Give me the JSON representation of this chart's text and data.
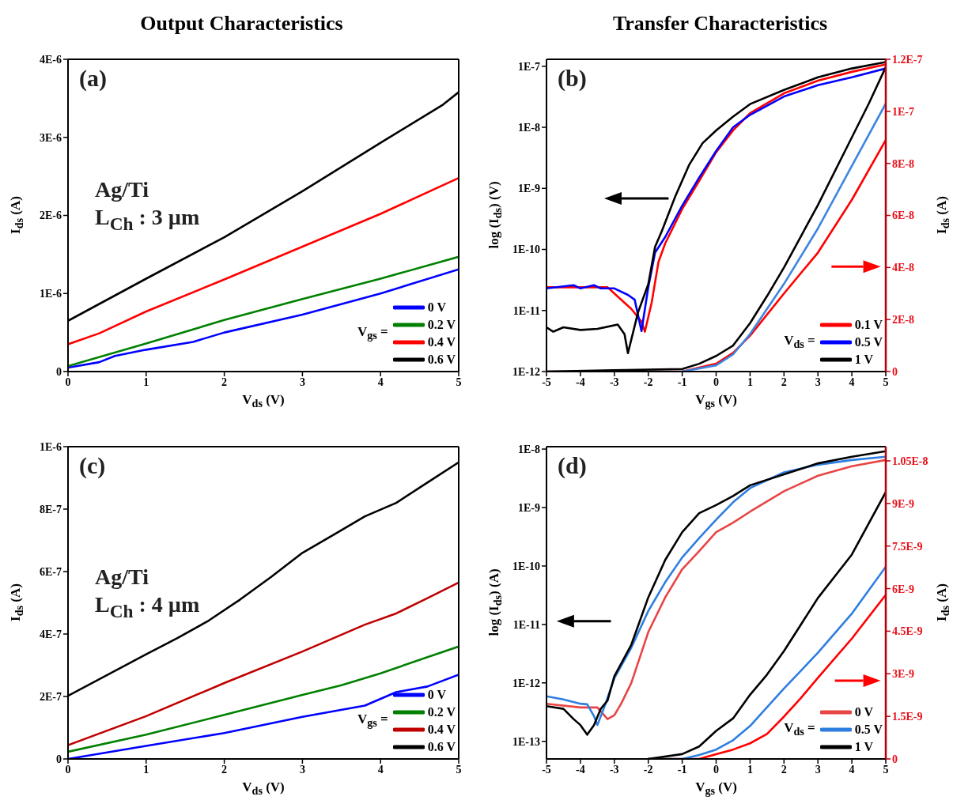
{
  "chart_data": [
    {
      "type": "line",
      "title": "Output Characteristics",
      "xlabel": "V$_{ds}$ (V)",
      "ylabel": "I$_{ds}$ (A)",
      "legend_title": "V$_{gs}$ =",
      "annotations": [
        "(a)",
        "Ag/Ti",
        "L$_{Ch}$ : 3 µm"
      ],
      "xlim": [
        0,
        5
      ],
      "xticks": [
        0,
        1,
        2,
        3,
        4,
        5
      ],
      "ylim": [
        0,
        4e-06
      ],
      "yticks": [
        0,
        {
          "value": 1e-06,
          "label": "1E-6"
        },
        {
          "value": 2e-06,
          "label": "2E-6"
        },
        {
          "value": 3e-06,
          "label": "3E-6"
        },
        {
          "value": 4e-06,
          "label": "4E-6"
        }
      ],
      "legend": "bottom right",
      "line_style": "solid",
      "series": [
        {
          "name": "0 V",
          "color": "#0000ff",
          "x": [
            0,
            0.4,
            0.6,
            1,
            1.6,
            2,
            3,
            4,
            5
          ],
          "values": [
            5e-08,
            1.2e-07,
            2e-07,
            2.8e-07,
            3.8e-07,
            5e-07,
            7.3e-07,
            1e-06,
            1.31e-06
          ]
        },
        {
          "name": "0.2 V",
          "color": "#008000",
          "x": [
            0,
            1,
            2,
            3,
            4,
            5
          ],
          "values": [
            7e-08,
            3.6e-07,
            6.6e-07,
            9.3e-07,
            1.19e-06,
            1.47e-06
          ]
        },
        {
          "name": "0.4 V",
          "color": "#ff0000",
          "x": [
            0,
            0.4,
            1,
            2,
            3,
            4,
            5
          ],
          "values": [
            3.5e-07,
            4.9e-07,
            7.7e-07,
            1.18e-06,
            1.6e-06,
            2.02e-06,
            2.48e-06
          ]
        },
        {
          "name": "0.6 V",
          "color": "#000000",
          "x": [
            0,
            1,
            2,
            3,
            4,
            4.8,
            5
          ],
          "values": [
            6.5e-07,
            1.19e-06,
            1.72e-06,
            2.31e-06,
            2.93e-06,
            3.42e-06,
            3.58e-06
          ]
        }
      ]
    },
    {
      "type": "line",
      "title": "Transfer Characteristics",
      "xlabel": "V$_{gs}$ (V)",
      "ylabel": "log (I$_{ds}$) (V)",
      "y2label": "I$_{ds}$ (A)",
      "legend_title": "V$_{ds}$ =",
      "annotations": [
        "(b)"
      ],
      "log": "y",
      "xlim": [
        -5,
        5
      ],
      "xticks": [
        -5,
        -4,
        -3,
        -2,
        -1,
        0,
        1,
        2,
        3,
        4,
        5
      ],
      "ylim": [
        1e-12,
        1.3e-07
      ],
      "yticks": [
        {
          "value": 1e-12,
          "label": "1E-12"
        },
        {
          "value": 1e-11,
          "label": "1E-11"
        },
        {
          "value": 1e-10,
          "label": "1E-10"
        },
        {
          "value": 1e-09,
          "label": "1E-9"
        },
        {
          "value": 1e-08,
          "label": "1E-8"
        },
        {
          "value": 1e-07,
          "label": "1E-7"
        }
      ],
      "y2lim": [
        0,
        1.2e-07
      ],
      "y2ticks": [
        0,
        {
          "value": 2e-08,
          "label": "2E-8"
        },
        {
          "value": 4e-08,
          "label": "4E-8"
        },
        {
          "value": 6e-08,
          "label": "6E-8"
        },
        {
          "value": 8e-08,
          "label": "8E-8"
        },
        {
          "value": 1e-07,
          "label": "1E-7"
        },
        {
          "value": 1.2e-07,
          "label": "1.2E-7"
        }
      ],
      "legend": "bottom right",
      "line_style": "solid",
      "series": [
        {
          "name": "0.1 V",
          "color": "#ff0000",
          "x": [
            -5,
            -3.2,
            -3,
            -2.5,
            -2.2,
            -2.1,
            -1.9,
            -1.7,
            -1.5,
            -1,
            -0.5,
            0,
            0.5,
            1,
            2,
            3,
            4,
            5
          ],
          "values": [
            2.4e-11,
            2.4e-11,
            1.9e-11,
            1.06e-11,
            6.6e-12,
            4.5e-12,
            1.35e-11,
            6.2e-11,
            1.26e-10,
            4.6e-10,
            1.33e-09,
            3.9e-09,
            8.9e-09,
            1.7e-08,
            3.6e-08,
            5.8e-08,
            8.1e-08,
            1.07e-07
          ]
        },
        {
          "name": "0.5 V",
          "color": "#0000ff",
          "x": [
            -5,
            -4.2,
            -4,
            -3.6,
            -3.4,
            -3,
            -2.6,
            -2.4,
            -2.2,
            -2,
            -1.8,
            -1.5,
            -1,
            -0.5,
            0,
            0.5,
            1,
            2,
            3,
            4,
            5
          ],
          "values": [
            2.3e-11,
            2.6e-11,
            2.3e-11,
            2.6e-11,
            2.3e-11,
            2.3e-11,
            1.8e-11,
            1.5e-11,
            4.6e-12,
            2.4e-11,
            8.9e-11,
            1.6e-10,
            5.2e-10,
            1.5e-09,
            4.1e-09,
            1e-08,
            1.6e-08,
            3.2e-08,
            4.9e-08,
            6.6e-08,
            9.2e-08
          ]
        },
        {
          "name": "1 V",
          "color": "#000000",
          "x": [
            -5,
            -4.8,
            -4.5,
            -4,
            -3.5,
            -2.9,
            -2.7,
            -2.6,
            -2.3,
            -2,
            -1.8,
            -1.6,
            -1.2,
            -0.8,
            -0.4,
            0,
            0.5,
            1,
            2,
            3,
            4,
            5
          ],
          "values": [
            5.3e-12,
            4.5e-12,
            5.3e-12,
            4.8e-12,
            5e-12,
            5.9e-12,
            4.1e-12,
            2e-12,
            9.4e-12,
            2.7e-11,
            1.1e-10,
            2e-10,
            7.5e-10,
            2.4e-09,
            5.5e-09,
            8.9e-09,
            1.5e-08,
            2.4e-08,
            4.1e-08,
            6.6e-08,
            9.2e-08,
            1.17e-07
          ]
        },
        {
          "axis": "y2",
          "color": "#ff0000",
          "x": [
            -5,
            -1,
            0,
            0.5,
            1,
            2,
            3,
            4,
            5
          ],
          "values": [
            0,
            0,
            3e-09,
            7.2e-09,
            1.38e-08,
            3e-08,
            4.57e-08,
            6.6e-08,
            8.9e-08
          ]
        },
        {
          "axis": "y2",
          "color": "#3d85e0",
          "x": [
            -5,
            -1,
            0,
            0.5,
            1,
            2,
            3,
            4,
            5
          ],
          "values": [
            0,
            0,
            2.4e-09,
            6.6e-09,
            1.44e-08,
            3.37e-08,
            5.5e-08,
            7.9e-08,
            1.03e-07
          ]
        },
        {
          "axis": "y2",
          "color": "#000000",
          "x": [
            -5,
            -1,
            -0.5,
            0,
            0.5,
            1,
            1.5,
            2,
            3,
            4,
            4.5,
            5
          ],
          "values": [
            0,
            1e-09,
            3e-09,
            6e-09,
            1e-08,
            1.86e-08,
            2.9e-08,
            4e-08,
            6.4e-08,
            9e-08,
            1.03e-07,
            1.17e-07
          ]
        }
      ]
    },
    {
      "type": "line",
      "xlabel": "V$_{ds}$ (V)",
      "ylabel": "I$_{ds}$ (A)",
      "legend_title": "V$_{gs}$ =",
      "annotations": [
        "(c)",
        "Ag/Ti",
        "L$_{Ch}$ : 4 µm"
      ],
      "xlim": [
        0,
        5
      ],
      "xticks": [
        0,
        1,
        2,
        3,
        4,
        5
      ],
      "ylim": [
        0,
        1e-06
      ],
      "yticks": [
        0,
        {
          "value": 2e-07,
          "label": "2E-7"
        },
        {
          "value": 4e-07,
          "label": "4E-7"
        },
        {
          "value": 6e-07,
          "label": "6E-7"
        },
        {
          "value": 8e-07,
          "label": "8E-7"
        },
        {
          "value": 1e-06,
          "label": "1E-6"
        }
      ],
      "legend": "bottom right",
      "line_style": "solid",
      "series": [
        {
          "name": "0 V",
          "color": "#0000ff",
          "x": [
            0,
            1,
            2,
            3,
            3.8,
            4.2,
            4.6,
            5
          ],
          "values": [
            0,
            4.2e-08,
            8.3e-08,
            1.35e-07,
            1.71e-07,
            2.14e-07,
            2.32e-07,
            2.7e-07
          ]
        },
        {
          "name": "0.2 V",
          "color": "#008000",
          "x": [
            0,
            1,
            2,
            3,
            3.5,
            4,
            4.6,
            5
          ],
          "values": [
            2.3e-08,
            7.8e-08,
            1.41e-07,
            2.05e-07,
            2.36e-07,
            2.74e-07,
            3.26e-07,
            3.6e-07
          ]
        },
        {
          "name": "0.4 V",
          "color": "#c00000",
          "x": [
            0,
            1,
            2,
            3,
            3.8,
            4.2,
            4.6,
            5
          ],
          "values": [
            4.4e-08,
            1.37e-07,
            2.43e-07,
            3.44e-07,
            4.3e-07,
            4.66e-07,
            5.15e-07,
            5.65e-07
          ]
        },
        {
          "name": "0.6 V",
          "color": "#000000",
          "x": [
            0,
            1,
            1.4,
            1.8,
            2.2,
            2.6,
            3,
            3.4,
            3.8,
            4.2,
            4.6,
            5
          ],
          "values": [
            2.02e-07,
            3.35e-07,
            3.87e-07,
            4.43e-07,
            5.1e-07,
            5.83e-07,
            6.6e-07,
            7.18e-07,
            7.77e-07,
            8.2e-07,
            8.85e-07,
            9.5e-07
          ]
        }
      ]
    },
    {
      "type": "line",
      "xlabel": "V$_{gs}$ (V)",
      "ylabel": "log (I$_{ds}$) (A)",
      "y2label": "I$_{ds}$ (A)",
      "legend_title": "V$_{ds}$ =",
      "annotations": [
        "(d)"
      ],
      "log": "y",
      "xlim": [
        -5,
        5
      ],
      "xticks": [
        -5,
        -4,
        -3,
        -2,
        -1,
        0,
        1,
        2,
        3,
        4,
        5
      ],
      "ylim": [
        5e-14,
        1.1e-08
      ],
      "yticks": [
        {
          "value": 1e-13,
          "label": "1E-13"
        },
        {
          "value": 1e-12,
          "label": "1E-12"
        },
        {
          "value": 1e-11,
          "label": "1E-11"
        },
        {
          "value": 1e-10,
          "label": "1E-10"
        },
        {
          "value": 1e-09,
          "label": "1E-9"
        },
        {
          "value": 1e-08,
          "label": "1E-8"
        }
      ],
      "y2lim": [
        0,
        1.1e-08
      ],
      "y2ticks": [
        0,
        {
          "value": 1.5e-09,
          "label": "1.5E-9"
        },
        {
          "value": 3e-09,
          "label": "3E-9"
        },
        {
          "value": 4.5e-09,
          "label": "4.5E-9"
        },
        {
          "value": 6e-09,
          "label": "6E-9"
        },
        {
          "value": 7.5e-09,
          "label": "7.5E-9"
        },
        {
          "value": 9e-09,
          "label": "9E-9"
        },
        {
          "value": 1.05e-08,
          "label": "1.05E-8"
        }
      ],
      "legend": "bottom right",
      "line_style": "solid",
      "series": [
        {
          "name": "0 V",
          "color": "#e84545",
          "x": [
            -5,
            -4,
            -3.5,
            -3.2,
            -3,
            -2.8,
            -2.5,
            -2,
            -1.5,
            -1,
            -0.5,
            0,
            0.5,
            1,
            2,
            3,
            4,
            5
          ],
          "values": [
            4.4e-13,
            3.8e-13,
            3.8e-13,
            2.4e-13,
            2.8e-13,
            4.4e-13,
            1e-12,
            7.4e-12,
            2.9e-11,
            8.8e-11,
            1.8e-10,
            3.8e-10,
            5.5e-10,
            8.5e-10,
            1.9e-09,
            3.5e-09,
            5.1e-09,
            6.5e-09
          ]
        },
        {
          "name": "0.5 V",
          "color": "#2e7ee0",
          "x": [
            -5,
            -4.5,
            -4,
            -3.8,
            -3.6,
            -3.5,
            -3.3,
            -3,
            -2.5,
            -2,
            -1.5,
            -1,
            -0.5,
            0,
            0.5,
            1,
            2,
            3,
            4,
            5
          ],
          "values": [
            5.9e-13,
            5.2e-13,
            4.4e-13,
            4.3e-13,
            2.7e-13,
            1.9e-13,
            3.8e-13,
            1.2e-12,
            4e-12,
            1.7e-11,
            5.3e-11,
            1.4e-10,
            3e-10,
            6.2e-10,
            1.23e-09,
            2.15e-09,
            4e-09,
            5.4e-09,
            6.5e-09,
            7.4e-09
          ]
        },
        {
          "name": "1 V",
          "color": "#000000",
          "x": [
            -5,
            -4.5,
            -4.2,
            -4,
            -3.8,
            -3.6,
            -3.4,
            -3.2,
            -3,
            -2.5,
            -2,
            -1.5,
            -1,
            -0.5,
            0,
            0.5,
            1,
            2,
            3,
            4,
            5
          ],
          "values": [
            4e-13,
            3.6e-13,
            2.4e-13,
            1.9e-13,
            1.3e-13,
            1.9e-13,
            3.6e-13,
            5e-13,
            1.3e-12,
            4.5e-12,
            2.9e-11,
            1.27e-10,
            3.8e-10,
            8e-10,
            1.1e-09,
            1.58e-09,
            2.4e-09,
            3.7e-09,
            5.7e-09,
            7.4e-09,
            9.2e-09
          ]
        },
        {
          "axis": "y2",
          "color": "#ff0000",
          "x": [
            -2,
            -0.5,
            0,
            0.5,
            1,
            1.5,
            2,
            2.5,
            3,
            4,
            5
          ],
          "values": [
            0,
            0,
            1.7e-10,
            3.3e-10,
            5.5e-10,
            8.8e-10,
            1.49e-09,
            2.15e-09,
            2.86e-09,
            4.24e-09,
            5.78e-09
          ]
        },
        {
          "axis": "y2",
          "color": "#2e7ee0",
          "x": [
            -2,
            -1,
            -0.5,
            0,
            0.5,
            1,
            2,
            3,
            4,
            5
          ],
          "values": [
            0,
            0,
            1.4e-10,
            3.3e-10,
            6.6e-10,
            1.16e-09,
            2.48e-09,
            3.74e-09,
            5.12e-09,
            6.77e-09
          ]
        },
        {
          "axis": "y2",
          "color": "#000000",
          "x": [
            -2,
            -1,
            -0.5,
            0,
            0.5,
            1,
            1.5,
            2,
            3,
            4,
            5
          ],
          "values": [
            0,
            1.7e-10,
            4.4e-10,
            9.9e-10,
            1.43e-09,
            2.26e-09,
            2.97e-09,
            3.8e-09,
            5.67e-09,
            7.2e-09,
            9.4e-09
          ]
        }
      ]
    }
  ]
}
